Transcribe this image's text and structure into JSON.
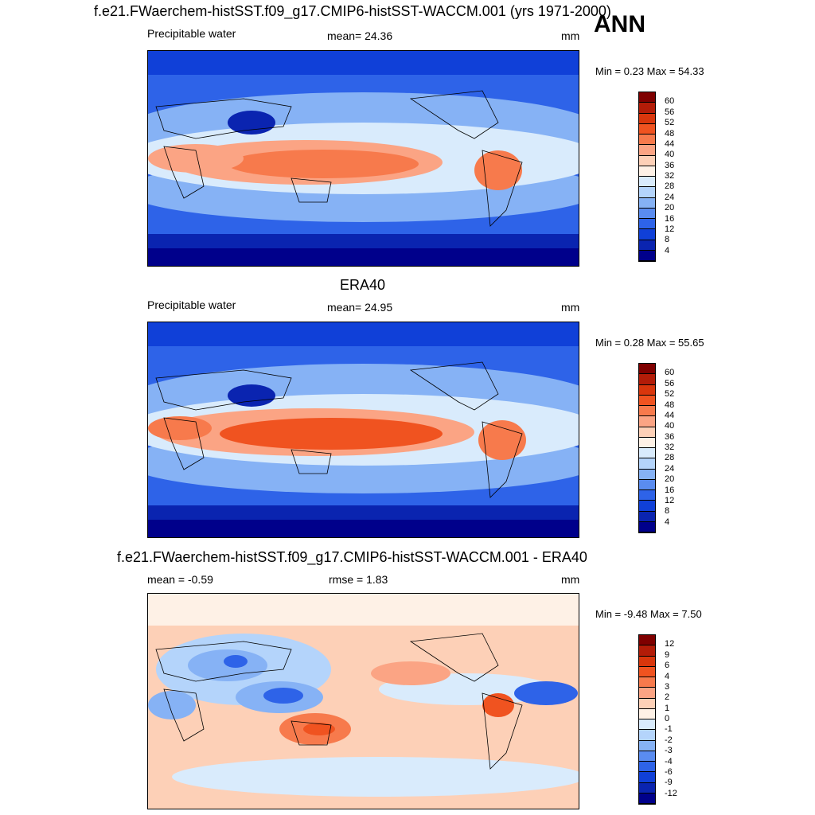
{
  "season": "ANN",
  "panels": [
    {
      "title": "f.e21.FWaerchem-histSST.f09_g17.CMIP6-histSST-WACCM.001 (yrs 1971-2000)",
      "left_label": "Precipitable water",
      "center_label": "mean=  24.36",
      "units": "mm",
      "minmax": "Min =   0.23 Max =  54.33",
      "colorbar_ticks": [
        "60",
        "56",
        "52",
        "48",
        "44",
        "40",
        "36",
        "32",
        "28",
        "24",
        "20",
        "16",
        "12",
        "8",
        "4"
      ],
      "colorbar_colors": [
        "#7f0000",
        "#b31c08",
        "#d9360c",
        "#f05320",
        "#f77a4c",
        "#fba484",
        "#fdd0b7",
        "#fef1e6",
        "#d9ebfc",
        "#b4d4fb",
        "#86b2f5",
        "#5a8cf0",
        "#2e63e8",
        "#1040d8",
        "#0a24b0",
        "#00008b"
      ]
    },
    {
      "title": "ERA40",
      "left_label": "Precipitable water",
      "center_label": "mean=  24.95",
      "units": "mm",
      "minmax": "Min =   0.28 Max =  55.65",
      "colorbar_ticks": [
        "60",
        "56",
        "52",
        "48",
        "44",
        "40",
        "36",
        "32",
        "28",
        "24",
        "20",
        "16",
        "12",
        "8",
        "4"
      ],
      "colorbar_colors": [
        "#7f0000",
        "#b31c08",
        "#d9360c",
        "#f05320",
        "#f77a4c",
        "#fba484",
        "#fdd0b7",
        "#fef1e6",
        "#d9ebfc",
        "#b4d4fb",
        "#86b2f5",
        "#5a8cf0",
        "#2e63e8",
        "#1040d8",
        "#0a24b0",
        "#00008b"
      ]
    },
    {
      "title": "f.e21.FWaerchem-histSST.f09_g17.CMIP6-histSST-WACCM.001 - ERA40",
      "left_label": "mean =  -0.59",
      "center_label": "rmse =   1.83",
      "units": "mm",
      "minmax": "Min =  -9.48 Max =   7.50",
      "colorbar_ticks": [
        "12",
        "9",
        "6",
        "4",
        "3",
        "2",
        "1",
        "0",
        "-1",
        "-2",
        "-3",
        "-4",
        "-6",
        "-9",
        "-12"
      ],
      "colorbar_colors": [
        "#7f0000",
        "#b31c08",
        "#d9360c",
        "#f05320",
        "#f77a4c",
        "#fba484",
        "#fdd0b7",
        "#fef1e6",
        "#d9ebfc",
        "#b4d4fb",
        "#86b2f5",
        "#5a8cf0",
        "#2e63e8",
        "#1040d8",
        "#0a24b0",
        "#00008b"
      ]
    }
  ]
}
